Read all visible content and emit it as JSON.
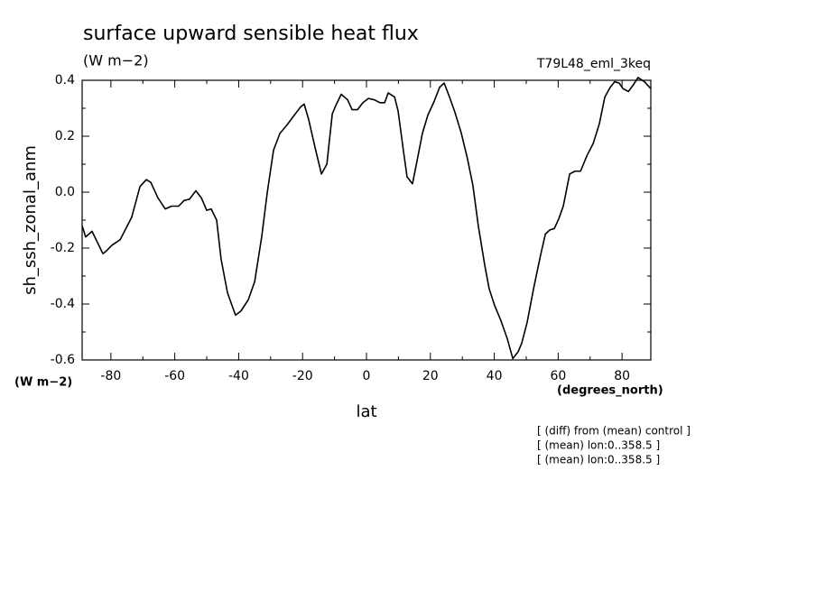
{
  "chart_data": {
    "type": "line",
    "title": "surface upward sensible heat flux",
    "subtitle": "(W m−2)",
    "annotation_right": "T79L48_eml_3keq",
    "ylabel": "sh_ssh_zonal_anm",
    "yunits": "(W m−2)",
    "xunits": "(degrees_north)",
    "xlabel": "lat",
    "notes": [
      "[ (diff) from (mean) control ]",
      "[ (mean) lon:0..358.5 ]",
      "[ (mean) lon:0..358.5 ]"
    ],
    "color": "#000000",
    "xlim": [
      -89,
      89
    ],
    "ylim": [
      -0.6,
      0.4
    ],
    "xticks": [
      -80,
      -60,
      -40,
      -20,
      0,
      20,
      40,
      60,
      80
    ],
    "yticks": [
      {
        "value": -0.6,
        "label": "-0.6"
      },
      {
        "value": -0.4,
        "label": "-0.4"
      },
      {
        "value": -0.2,
        "label": "-0.2"
      },
      {
        "value": 0,
        "label": "0.0"
      },
      {
        "value": 0.2,
        "label": "0.2"
      },
      {
        "value": 0.4,
        "label": "0.4"
      }
    ],
    "x": [
      -89,
      -87.9,
      -85.9,
      -82.5,
      -81.4,
      -79.7,
      -77.1,
      -73.5,
      -70.9,
      -68.9,
      -67.5,
      -65.3,
      -63.0,
      -61.0,
      -58.8,
      -57.1,
      -55.4,
      -53.4,
      -51.7,
      -50.0,
      -48.6,
      -46.9,
      -45.5,
      -43.5,
      -41.0,
      -39.3,
      -37.0,
      -35.0,
      -32.8,
      -31.1,
      -29.1,
      -27.1,
      -24.9,
      -22.6,
      -20.6,
      -19.5,
      -18.1,
      -16.1,
      -14.1,
      -12.4,
      -10.7,
      -9.6,
      -7.9,
      -5.9,
      -4.5,
      -2.8,
      -1.1,
      0.6,
      2.5,
      4.2,
      5.7,
      6.8,
      8.8,
      9.9,
      11.6,
      12.7,
      14.4,
      15.8,
      17.5,
      19.2,
      21.2,
      22.9,
      24.3,
      26.0,
      27.7,
      29.7,
      31.6,
      33.3,
      35.0,
      37.0,
      38.4,
      40.1,
      42.1,
      44.1,
      45.8,
      47.5,
      48.6,
      50.3,
      52.3,
      54.5,
      56.0,
      57.4,
      58.8,
      60.2,
      61.6,
      63.6,
      65.3,
      67.0,
      69.0,
      71.0,
      72.9,
      74.6,
      76.3,
      77.7,
      79.1,
      80.3,
      82.0,
      83.6,
      85.0,
      87.0,
      89.0
    ],
    "values": [
      -0.12,
      -0.16,
      -0.14,
      -0.22,
      -0.21,
      -0.19,
      -0.17,
      -0.09,
      0.02,
      0.045,
      0.035,
      -0.02,
      -0.06,
      -0.05,
      -0.05,
      -0.03,
      -0.025,
      0.005,
      -0.02,
      -0.065,
      -0.06,
      -0.1,
      -0.24,
      -0.36,
      -0.44,
      -0.425,
      -0.385,
      -0.32,
      -0.16,
      -0.005,
      0.15,
      0.21,
      0.24,
      0.275,
      0.305,
      0.315,
      0.26,
      0.16,
      0.065,
      0.1,
      0.28,
      0.31,
      0.35,
      0.33,
      0.295,
      0.295,
      0.32,
      0.335,
      0.33,
      0.32,
      0.32,
      0.355,
      0.34,
      0.29,
      0.145,
      0.055,
      0.03,
      0.11,
      0.21,
      0.275,
      0.325,
      0.375,
      0.39,
      0.34,
      0.285,
      0.21,
      0.12,
      0.025,
      -0.12,
      -0.26,
      -0.345,
      -0.405,
      -0.46,
      -0.525,
      -0.595,
      -0.57,
      -0.54,
      -0.465,
      -0.345,
      -0.225,
      -0.15,
      -0.135,
      -0.13,
      -0.095,
      -0.05,
      0.065,
      0.075,
      0.075,
      0.13,
      0.175,
      0.245,
      0.34,
      0.375,
      0.395,
      0.39,
      0.37,
      0.36,
      0.385,
      0.41,
      0.395,
      0.37
    ]
  }
}
